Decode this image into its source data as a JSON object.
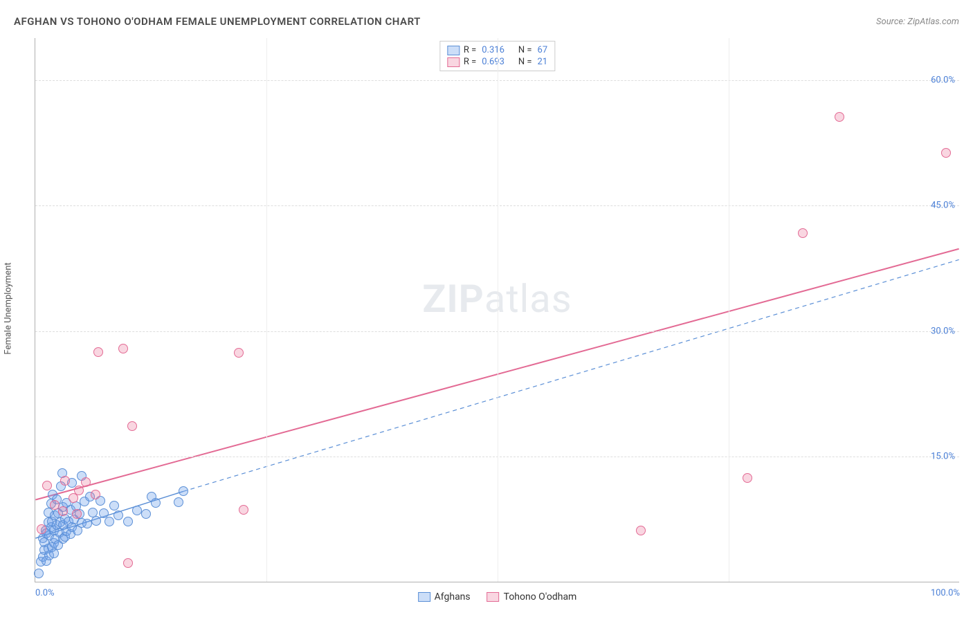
{
  "title": "AFGHAN VS TOHONO O'ODHAM FEMALE UNEMPLOYMENT CORRELATION CHART",
  "source": "Source: ZipAtlas.com",
  "y_axis_label": "Female Unemployment",
  "watermark": {
    "bold": "ZIP",
    "rest": "atlas"
  },
  "chart": {
    "type": "scatter",
    "xlim": [
      0,
      100
    ],
    "ylim": [
      0,
      65
    ],
    "x_ticks": [
      {
        "pos": 0,
        "label": "0.0%",
        "align": "left"
      },
      {
        "pos": 100,
        "label": "100.0%",
        "align": "right"
      }
    ],
    "y_ticks": [
      {
        "pos": 15,
        "label": "15.0%"
      },
      {
        "pos": 30,
        "label": "30.0%"
      },
      {
        "pos": 45,
        "label": "45.0%"
      },
      {
        "pos": 60,
        "label": "60.0%"
      }
    ],
    "v_gridlines": [
      25,
      50,
      75
    ],
    "grid_color": "#dddddd",
    "v_grid_color": "#eeeeee",
    "background_color": "#ffffff",
    "marker_radius": 7,
    "series": [
      {
        "name": "Afghans",
        "fill": "rgba(108,160,236,0.35)",
        "stroke": "#5b8fd6",
        "trend": {
          "dash": "6 5",
          "width": 1.5,
          "x1": 0,
          "y1": 5.2,
          "x2": 16,
          "y2": 10.8,
          "x2_ext": 100,
          "y2_ext": 38.5
        },
        "R_label": "R",
        "R_value": "0.316",
        "N_label": "N",
        "N_value": "67",
        "points": [
          [
            0.4,
            1
          ],
          [
            0.6,
            2.4
          ],
          [
            0.8,
            3
          ],
          [
            0.8,
            5.2
          ],
          [
            1,
            3.8
          ],
          [
            1,
            4.7
          ],
          [
            1.1,
            6.1
          ],
          [
            1.2,
            2.5
          ],
          [
            1.2,
            5.8
          ],
          [
            1.4,
            4
          ],
          [
            1.4,
            7.1
          ],
          [
            1.4,
            8.3
          ],
          [
            1.5,
            3.1
          ],
          [
            1.5,
            5.5
          ],
          [
            1.7,
            6.5
          ],
          [
            1.7,
            9.3
          ],
          [
            1.8,
            4.1
          ],
          [
            1.8,
            7.2
          ],
          [
            1.9,
            10.4
          ],
          [
            2,
            3.4
          ],
          [
            2,
            6.1
          ],
          [
            2,
            4.6
          ],
          [
            2.1,
            7.9
          ],
          [
            2.2,
            5.1
          ],
          [
            2.3,
            6.8
          ],
          [
            2.3,
            9.8
          ],
          [
            2.5,
            4.4
          ],
          [
            2.5,
            8.2
          ],
          [
            2.6,
            5.9
          ],
          [
            2.7,
            7.1
          ],
          [
            2.8,
            11.4
          ],
          [
            2.9,
            13
          ],
          [
            3,
            5.1
          ],
          [
            3,
            6.8
          ],
          [
            3,
            8.9
          ],
          [
            3.2,
            5.4
          ],
          [
            3.2,
            7.5
          ],
          [
            3.4,
            6
          ],
          [
            3.4,
            9.4
          ],
          [
            3.6,
            7.2
          ],
          [
            3.8,
            5.7
          ],
          [
            3.8,
            8.6
          ],
          [
            4,
            6.5
          ],
          [
            4,
            11.8
          ],
          [
            4.2,
            7.4
          ],
          [
            4.4,
            9
          ],
          [
            4.6,
            6.1
          ],
          [
            4.8,
            8.1
          ],
          [
            5,
            12.6
          ],
          [
            5,
            7
          ],
          [
            5.3,
            9.6
          ],
          [
            5.6,
            6.9
          ],
          [
            5.9,
            10.2
          ],
          [
            6.2,
            8.3
          ],
          [
            6.6,
            7.3
          ],
          [
            7,
            9.7
          ],
          [
            7.4,
            8.2
          ],
          [
            8,
            7.2
          ],
          [
            8.5,
            9.1
          ],
          [
            9,
            7.9
          ],
          [
            10,
            7.2
          ],
          [
            11,
            8.5
          ],
          [
            12,
            8.1
          ],
          [
            12.6,
            10.2
          ],
          [
            13,
            9.4
          ],
          [
            15.5,
            9.5
          ],
          [
            16,
            10.8
          ]
        ]
      },
      {
        "name": "Tohono O'odham",
        "fill": "rgba(236,120,155,0.30)",
        "stroke": "#e36a94",
        "trend": {
          "dash": "none",
          "width": 2,
          "x1": 0,
          "y1": 9.8,
          "x2": 100,
          "y2": 39.8
        },
        "R_label": "R",
        "R_value": "0.693",
        "N_label": "N",
        "N_value": "21",
        "points": [
          [
            0.7,
            6.3
          ],
          [
            1.3,
            11.5
          ],
          [
            2.1,
            9.2
          ],
          [
            3,
            8.4
          ],
          [
            3.2,
            12.1
          ],
          [
            4.1,
            10
          ],
          [
            4.5,
            8.1
          ],
          [
            4.7,
            10.9
          ],
          [
            5.5,
            11.9
          ],
          [
            6.5,
            10.4
          ],
          [
            6.8,
            27.4
          ],
          [
            9.5,
            27.8
          ],
          [
            10,
            2.2
          ],
          [
            10.5,
            18.6
          ],
          [
            22,
            27.3
          ],
          [
            22.5,
            8.6
          ],
          [
            65.5,
            6.1
          ],
          [
            77,
            12.4
          ],
          [
            83,
            41.6
          ],
          [
            87,
            55.5
          ],
          [
            98.5,
            51.2
          ]
        ]
      }
    ],
    "bottom_legend": [
      {
        "label": "Afghans",
        "fill": "rgba(108,160,236,0.35)",
        "stroke": "#5b8fd6"
      },
      {
        "label": "Tohono O'odham",
        "fill": "rgba(236,120,155,0.30)",
        "stroke": "#e36a94"
      }
    ]
  }
}
